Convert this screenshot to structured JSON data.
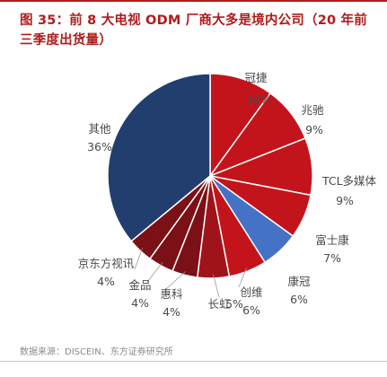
{
  "title": "图 35：前 8 大电视 ODM 厂商大多是境内公司（20 年前三季度出货量）",
  "source": "数据来源：DISCEIN、东方证券研究所",
  "chart_data": {
    "type": "pie",
    "title": "图 35：前 8 大电视 ODM 厂商大多是境内公司（20 年前三季度出货量）",
    "slices": [
      {
        "name": "冠捷",
        "value": 10,
        "pct_label": "10%",
        "color": "#c4141b"
      },
      {
        "name": "兆驰",
        "value": 9,
        "pct_label": "9%",
        "color": "#c4141b"
      },
      {
        "name": "TCL多媒体",
        "value": 9,
        "pct_label": "9%",
        "color": "#c4141b"
      },
      {
        "name": "富士康",
        "value": 7,
        "pct_label": "7%",
        "color": "#c4141b"
      },
      {
        "name": "康冠",
        "value": 6,
        "pct_label": "6%",
        "color": "#4472c4"
      },
      {
        "name": "创维",
        "value": 6,
        "pct_label": "6%",
        "color": "#c4141b"
      },
      {
        "name": "长虹",
        "value": 5,
        "pct_label": "5%",
        "color": "#a0131a"
      },
      {
        "name": "惠科",
        "value": 4,
        "pct_label": "4%",
        "color": "#7b1016"
      },
      {
        "name": "金品",
        "value": 4,
        "pct_label": "4%",
        "color": "#7b1016"
      },
      {
        "name": "京东方视讯",
        "value": 4,
        "pct_label": "4%",
        "color": "#7b1016"
      },
      {
        "name": "其他",
        "value": 36,
        "pct_label": "36%",
        "color": "#213e6e"
      }
    ]
  }
}
